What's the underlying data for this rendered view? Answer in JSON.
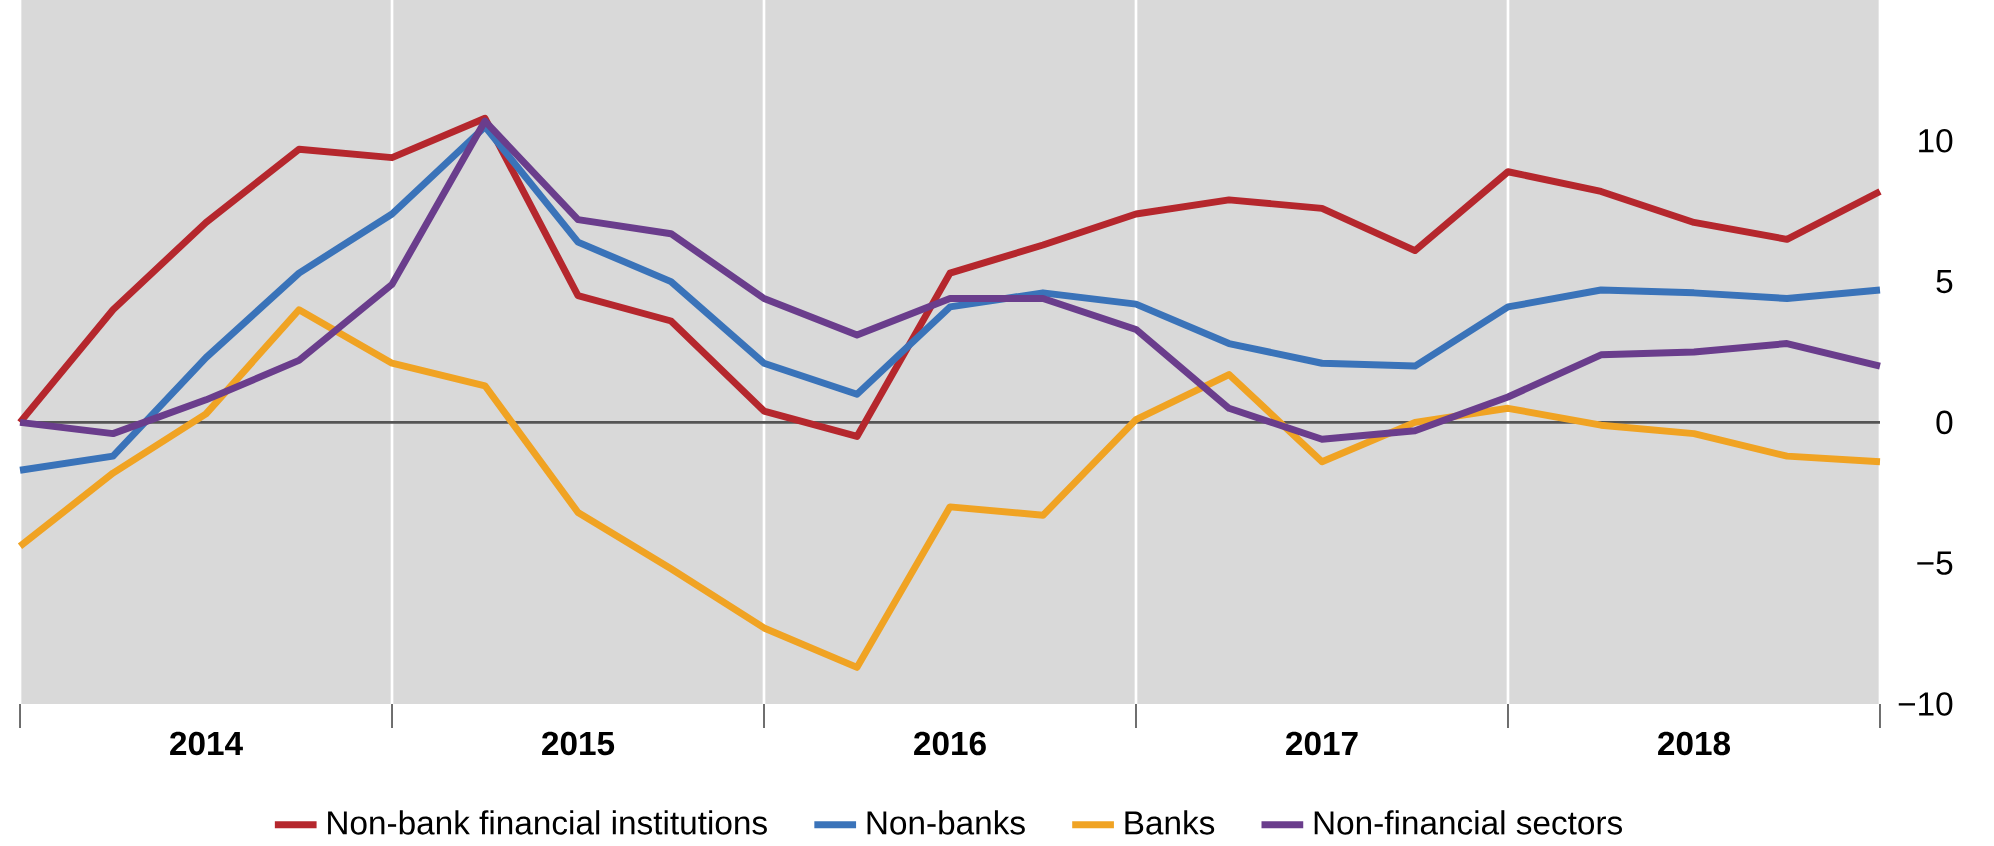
{
  "chart_data": {
    "type": "line",
    "x": [
      2014,
      2014.25,
      2014.5,
      2014.75,
      2015,
      2015.25,
      2015.5,
      2015.75,
      2016,
      2016.25,
      2016.5,
      2016.75,
      2017,
      2017.25,
      2017.5,
      2017.75,
      2018,
      2018.25,
      2018.5,
      2018.75,
      2019
    ],
    "series": [
      {
        "name": "Non-bank financial institutions",
        "color": "#b5272d",
        "values": [
          0,
          4.0,
          7.1,
          9.7,
          9.4,
          10.8,
          4.5,
          3.6,
          0.4,
          -0.5,
          5.3,
          6.3,
          7.4,
          7.9,
          7.6,
          6.1,
          8.9,
          8.2,
          7.1,
          6.5,
          8.2
        ]
      },
      {
        "name": "Non-banks",
        "color": "#3a73b9",
        "values": [
          -1.7,
          -1.2,
          2.3,
          5.3,
          7.4,
          10.5,
          6.4,
          5.0,
          2.1,
          1.0,
          4.1,
          4.6,
          4.2,
          2.8,
          2.1,
          2.0,
          4.1,
          4.7,
          4.6,
          4.4,
          4.7
        ]
      },
      {
        "name": "Banks",
        "color": "#f0a323",
        "values": [
          -4.4,
          -1.8,
          0.3,
          4.0,
          2.1,
          1.3,
          -3.2,
          -5.2,
          -7.3,
          -8.7,
          -3.0,
          -3.3,
          0.1,
          1.7,
          -1.4,
          0,
          0.5,
          -0.1,
          -0.4,
          -1.2,
          -1.4
        ]
      },
      {
        "name": "Non-financial sectors",
        "color": "#6a3d8c",
        "values": [
          0,
          -0.4,
          0.8,
          2.2,
          4.9,
          10.7,
          7.2,
          6.7,
          4.4,
          3.1,
          4.4,
          4.4,
          3.3,
          0.5,
          -0.6,
          -0.3,
          0.9,
          2.4,
          2.5,
          2.8,
          2.0
        ]
      }
    ],
    "xlim": [
      2014,
      2019
    ],
    "xticks": [
      {
        "value": 2014,
        "label": null
      },
      {
        "value": 2014.5,
        "label": "2014"
      },
      {
        "value": 2015,
        "label": null
      },
      {
        "value": 2015.5,
        "label": "2015"
      },
      {
        "value": 2016,
        "label": null
      },
      {
        "value": 2016.5,
        "label": "2016"
      },
      {
        "value": 2017,
        "label": null
      },
      {
        "value": 2017.5,
        "label": "2017"
      },
      {
        "value": 2018,
        "label": null
      },
      {
        "value": 2018.5,
        "label": "2018"
      },
      {
        "value": 2019,
        "label": null
      }
    ],
    "ylim": [
      -10,
      15
    ],
    "yticks": [
      {
        "value": -10,
        "label": "−10"
      },
      {
        "value": -5,
        "label": "−5"
      },
      0,
      5,
      10
    ],
    "ref_lines": [
      {
        "axis": "y",
        "value": 0,
        "color": "#555555"
      }
    ],
    "grid": "x",
    "legend": "bottom",
    "marker": "none",
    "line_style": "solid"
  }
}
